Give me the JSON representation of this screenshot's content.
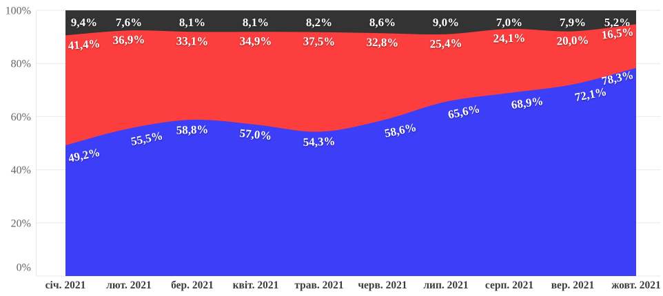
{
  "chart_data": {
    "type": "area",
    "stacked": true,
    "percent_stacked": true,
    "title": "",
    "xlabel": "",
    "ylabel": "",
    "ylim": [
      0,
      100
    ],
    "grid": true,
    "legend": "none",
    "categories": [
      "січ. 2021",
      "лют. 2021",
      "бер. 2021",
      "квіт. 2021",
      "трав. 2021",
      "черв. 2021",
      "лип. 2021",
      "серп. 2021",
      "вер. 2021",
      "жовт. 2021"
    ],
    "ytick_values": [
      0,
      20,
      40,
      60,
      80,
      100
    ],
    "ytick_labels": [
      "0%",
      "20%",
      "40%",
      "60%",
      "80%",
      "100%"
    ],
    "series": [
      {
        "id": "bottom-blue",
        "color": "#3d3ef8",
        "values": [
          49.2,
          55.5,
          58.8,
          57.0,
          54.3,
          58.6,
          65.6,
          68.9,
          72.1,
          78.3
        ],
        "labels": [
          "49,2%",
          "55,5%",
          "58,8%",
          "57,0%",
          "54,3%",
          "58,6%",
          "65,6%",
          "68,9%",
          "72,1%",
          "78,3%"
        ]
      },
      {
        "id": "middle-red",
        "color": "#fc3e3e",
        "values": [
          41.4,
          36.9,
          33.1,
          34.9,
          37.5,
          32.8,
          25.4,
          24.1,
          20.0,
          16.5
        ],
        "labels": [
          "41,4%",
          "36,9%",
          "33,1%",
          "34,9%",
          "37,5%",
          "32,8%",
          "25,4%",
          "24,1%",
          "20,0%",
          "16,5%"
        ]
      },
      {
        "id": "top-dark",
        "color": "#333333",
        "values": [
          9.4,
          7.6,
          8.1,
          8.1,
          8.2,
          8.6,
          9.0,
          7.0,
          7.9,
          5.2
        ],
        "labels": [
          "9,4%",
          "7,6%",
          "8,1%",
          "8,1%",
          "8,2%",
          "8,6%",
          "9,0%",
          "7,0%",
          "7,9%",
          "5,2%"
        ]
      }
    ],
    "colors": {
      "grid": "#e7e7e7",
      "y_axis_text": "#666666",
      "x_axis_text": "#3d3d3d",
      "data_label_text": "#ffffff",
      "background": "#ffffff"
    }
  }
}
